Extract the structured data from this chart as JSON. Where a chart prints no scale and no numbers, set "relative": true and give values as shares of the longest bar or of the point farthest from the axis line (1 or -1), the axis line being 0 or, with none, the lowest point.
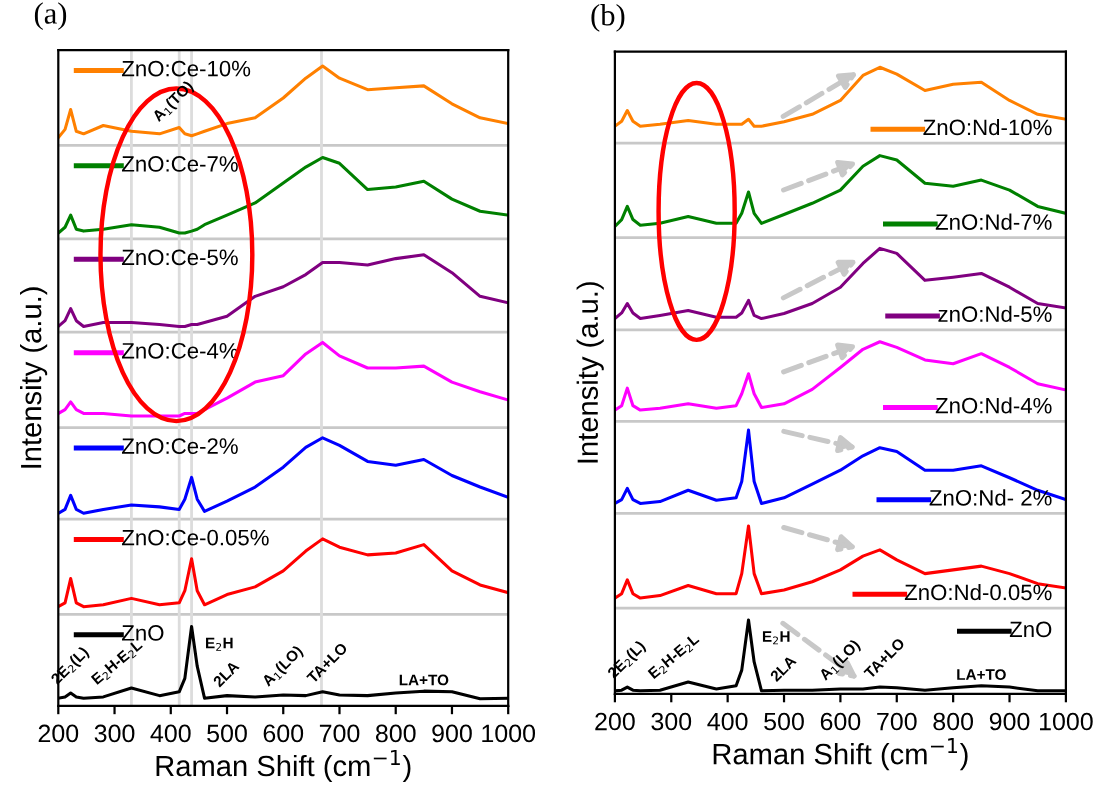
{
  "chart_data": [
    {
      "type": "line",
      "title": "(a)",
      "xlabel": "Raman Shift (cm$^{−1}$)",
      "ylabel": "Intensity (a.u.)",
      "relative": true,
      "legend": "top left",
      "xlim": [
        200,
        1000
      ],
      "xticks": [
        200,
        300,
        400,
        500,
        600,
        700,
        800,
        900,
        1000
      ],
      "grid": false,
      "x": [
        200,
        212,
        222,
        232,
        245,
        280,
        330,
        380,
        415,
        425,
        437,
        447,
        460,
        500,
        550,
        600,
        640,
        670,
        700,
        750,
        800,
        850,
        900,
        950,
        1000
      ],
      "series": [
        {
          "name": "ZnO:Ce-10%",
          "color": "#ff8000",
          "values": [
            0.888,
            0.901,
            0.932,
            0.898,
            0.894,
            0.907,
            0.898,
            0.894,
            0.904,
            0.894,
            0.891,
            0.894,
            0.898,
            0.91,
            0.919,
            0.95,
            0.981,
            1.0,
            0.981,
            0.963,
            0.966,
            0.969,
            0.941,
            0.919,
            0.91
          ]
        },
        {
          "name": "ZnO:Ce-7%",
          "color": "#008000",
          "values": [
            0.739,
            0.748,
            0.767,
            0.745,
            0.742,
            0.745,
            0.752,
            0.748,
            0.739,
            0.739,
            0.742,
            0.745,
            0.752,
            0.767,
            0.786,
            0.817,
            0.842,
            0.857,
            0.848,
            0.807,
            0.811,
            0.82,
            0.792,
            0.773,
            0.767
          ]
        },
        {
          "name": "ZnO:Ce-5%",
          "color": "#800080",
          "values": [
            0.593,
            0.602,
            0.621,
            0.602,
            0.593,
            0.599,
            0.599,
            0.596,
            0.593,
            0.593,
            0.596,
            0.596,
            0.599,
            0.609,
            0.64,
            0.655,
            0.674,
            0.693,
            0.693,
            0.689,
            0.699,
            0.705,
            0.677,
            0.64,
            0.63
          ]
        },
        {
          "name": "ZnO:Ce-4%",
          "color": "#ff00ff",
          "values": [
            0.457,
            0.463,
            0.475,
            0.463,
            0.457,
            0.457,
            0.453,
            0.453,
            0.453,
            0.457,
            0.457,
            0.457,
            0.463,
            0.481,
            0.506,
            0.516,
            0.55,
            0.568,
            0.547,
            0.528,
            0.528,
            0.531,
            0.506,
            0.491,
            0.478
          ]
        },
        {
          "name": "ZnO:Ce-2%",
          "color": "#0000ff",
          "values": [
            0.301,
            0.307,
            0.329,
            0.307,
            0.301,
            0.307,
            0.314,
            0.311,
            0.307,
            0.323,
            0.357,
            0.323,
            0.304,
            0.32,
            0.342,
            0.373,
            0.404,
            0.419,
            0.407,
            0.382,
            0.376,
            0.385,
            0.36,
            0.342,
            0.326
          ]
        },
        {
          "name": "ZnO:Ce-0.05%",
          "color": "#ff0000",
          "values": [
            0.155,
            0.161,
            0.199,
            0.161,
            0.155,
            0.158,
            0.168,
            0.158,
            0.161,
            0.18,
            0.23,
            0.18,
            0.158,
            0.174,
            0.186,
            0.211,
            0.242,
            0.261,
            0.248,
            0.236,
            0.239,
            0.252,
            0.211,
            0.189,
            0.177
          ]
        },
        {
          "name": "ZnO",
          "color": "#000000",
          "values": [
            0.012,
            0.014,
            0.02,
            0.014,
            0.012,
            0.014,
            0.028,
            0.016,
            0.022,
            0.043,
            0.124,
            0.062,
            0.012,
            0.016,
            0.014,
            0.017,
            0.016,
            0.022,
            0.017,
            0.016,
            0.02,
            0.023,
            0.022,
            0.011,
            0.012
          ]
        }
      ],
      "ref_lines": [
        {
          "axis": "y",
          "value": 0.876,
          "color": "#c8c8c8"
        },
        {
          "axis": "y",
          "value": 0.73,
          "color": "#c8c8c8"
        },
        {
          "axis": "y",
          "value": 0.584,
          "color": "#c8c8c8"
        },
        {
          "axis": "y",
          "value": 0.435,
          "color": "#c8c8c8"
        },
        {
          "axis": "y",
          "value": 0.292,
          "color": "#c8c8c8"
        },
        {
          "axis": "y",
          "value": 0.143,
          "color": "#c8c8c8"
        },
        {
          "axis": "x",
          "value": 330,
          "color": "#dcdcdc"
        },
        {
          "axis": "x",
          "value": 415,
          "color": "#dcdcdc"
        },
        {
          "axis": "x",
          "value": 437,
          "color": "#dcdcdc"
        },
        {
          "axis": "x",
          "value": 668,
          "color": "#dcdcdc"
        }
      ],
      "annotations": [
        {
          "text": "2E$_{2}$(L)",
          "x": 222,
          "y": 0.02
        },
        {
          "text": "E$_{2}$H-E$_{2}$L",
          "x": 330,
          "y": 0.028
        },
        {
          "text": "E$_{2}$H",
          "x": 437,
          "y": 0.124
        },
        {
          "text": "2LA",
          "x": 500,
          "y": 0.016
        },
        {
          "text": "A$_{1}$(LO)",
          "x": 600,
          "y": 0.017
        },
        {
          "text": "TA+LO",
          "x": 670,
          "y": 0.022
        },
        {
          "text": "LA+TO",
          "x": 850,
          "y": 0.023
        },
        {
          "text": "A$_{1}$(TO)",
          "x": 415,
          "y": 0.904
        }
      ]
    },
    {
      "type": "line",
      "title": "(b)",
      "xlabel": "Raman Shift (cm$^{−1}$)",
      "ylabel": "Intensity (a.u.)",
      "relative": true,
      "legend": "right",
      "xlim": [
        200,
        1000
      ],
      "xticks": [
        200,
        300,
        400,
        500,
        600,
        700,
        800,
        900,
        1000
      ],
      "grid": false,
      "x": [
        200,
        212,
        222,
        232,
        245,
        280,
        330,
        380,
        415,
        425,
        437,
        447,
        460,
        500,
        550,
        600,
        640,
        670,
        700,
        750,
        800,
        850,
        900,
        950,
        1000
      ],
      "series": [
        {
          "name": "ZnO:Nd-10%",
          "color": "#ff8000",
          "values": [
            0.906,
            0.914,
            0.931,
            0.914,
            0.906,
            0.909,
            0.915,
            0.909,
            0.909,
            0.909,
            0.917,
            0.906,
            0.906,
            0.913,
            0.925,
            0.947,
            0.987,
            1.0,
            0.989,
            0.963,
            0.973,
            0.976,
            0.947,
            0.925,
            0.917
          ]
        },
        {
          "name": "ZnO:Nd-7%",
          "color": "#008000",
          "values": [
            0.746,
            0.757,
            0.778,
            0.757,
            0.748,
            0.751,
            0.762,
            0.751,
            0.751,
            0.767,
            0.801,
            0.767,
            0.751,
            0.765,
            0.783,
            0.804,
            0.842,
            0.859,
            0.852,
            0.815,
            0.81,
            0.82,
            0.804,
            0.778,
            0.767
          ]
        },
        {
          "name": "znO:Nd-5%",
          "color": "#800080",
          "values": [
            0.599,
            0.608,
            0.623,
            0.608,
            0.599,
            0.604,
            0.612,
            0.601,
            0.601,
            0.608,
            0.628,
            0.604,
            0.599,
            0.607,
            0.623,
            0.649,
            0.687,
            0.711,
            0.703,
            0.66,
            0.665,
            0.671,
            0.649,
            0.623,
            0.616
          ]
        },
        {
          "name": "ZnO:Nd-4%",
          "color": "#ff00ff",
          "values": [
            0.453,
            0.46,
            0.488,
            0.46,
            0.453,
            0.456,
            0.463,
            0.456,
            0.46,
            0.479,
            0.511,
            0.479,
            0.457,
            0.463,
            0.486,
            0.521,
            0.55,
            0.562,
            0.553,
            0.533,
            0.527,
            0.543,
            0.521,
            0.495,
            0.485
          ]
        },
        {
          "name": "ZnO:Nd- 2%",
          "color": "#0000ff",
          "values": [
            0.304,
            0.31,
            0.328,
            0.31,
            0.304,
            0.307,
            0.325,
            0.309,
            0.313,
            0.339,
            0.421,
            0.339,
            0.304,
            0.313,
            0.335,
            0.357,
            0.38,
            0.393,
            0.387,
            0.357,
            0.357,
            0.364,
            0.345,
            0.325,
            0.31
          ]
        },
        {
          "name": "ZnO:Nd-0.05%",
          "color": "#ff0000",
          "values": [
            0.153,
            0.16,
            0.182,
            0.16,
            0.153,
            0.157,
            0.173,
            0.16,
            0.16,
            0.192,
            0.268,
            0.192,
            0.16,
            0.166,
            0.179,
            0.198,
            0.22,
            0.23,
            0.214,
            0.192,
            0.198,
            0.204,
            0.192,
            0.176,
            0.169
          ]
        },
        {
          "name": "ZnO",
          "color": "#000000",
          "values": [
            0.005,
            0.006,
            0.011,
            0.006,
            0.005,
            0.006,
            0.019,
            0.008,
            0.013,
            0.038,
            0.118,
            0.051,
            0.005,
            0.006,
            0.006,
            0.008,
            0.008,
            0.011,
            0.01,
            0.006,
            0.01,
            0.013,
            0.011,
            0.005,
            0.005
          ]
        }
      ],
      "ref_lines": [
        {
          "axis": "y",
          "value": 0.879,
          "color": "#c8c8c8"
        },
        {
          "axis": "y",
          "value": 0.728,
          "color": "#c8c8c8"
        },
        {
          "axis": "y",
          "value": 0.581,
          "color": "#c8c8c8"
        },
        {
          "axis": "y",
          "value": 0.435,
          "color": "#c8c8c8"
        },
        {
          "axis": "y",
          "value": 0.288,
          "color": "#c8c8c8"
        },
        {
          "axis": "y",
          "value": 0.137,
          "color": "#c8c8c8"
        }
      ],
      "annotations": [
        {
          "text": "2E$_{2}$(L)",
          "x": 222,
          "y": 0.011
        },
        {
          "text": "E$_{2}$H-E$_{2}$L",
          "x": 330,
          "y": 0.019
        },
        {
          "text": "E$_{2}$H",
          "x": 437,
          "y": 0.118
        },
        {
          "text": "2LA",
          "x": 500,
          "y": 0.006
        },
        {
          "text": "A$_{1}$(LO)",
          "x": 600,
          "y": 0.008
        },
        {
          "text": "TA+LO",
          "x": 670,
          "y": 0.011
        },
        {
          "text": "LA+TO",
          "x": 850,
          "y": 0.013
        }
      ]
    }
  ]
}
